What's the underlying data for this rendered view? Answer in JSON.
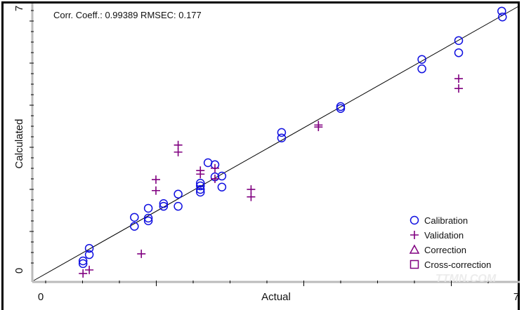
{
  "chart_data": {
    "type": "scatter",
    "title": "",
    "annotation": "Corr. Coeff.: 0.99389   RMSEC: 0.177",
    "xlabel": "Actual",
    "ylabel": "Calculated",
    "xlim": [
      0,
      7
    ],
    "ylim": [
      0,
      7
    ],
    "x_tick_labels": [
      "0",
      "7"
    ],
    "y_tick_labels": [
      "0",
      "7"
    ],
    "reference_line": "y = x",
    "grid": false,
    "legend_position": "bottom-right",
    "legend": [
      {
        "name": "Calibration",
        "marker": "circle",
        "color": "#1010e0"
      },
      {
        "name": "Validation",
        "marker": "plus",
        "color": "#800080"
      },
      {
        "name": "Correction",
        "marker": "triangle",
        "color": "#800080"
      },
      {
        "name": "Cross-correction",
        "marker": "square",
        "color": "#800080"
      }
    ],
    "series": [
      {
        "name": "Calibration",
        "marker": "circle",
        "color": "#1010e0",
        "points": [
          [
            0.71,
            0.5
          ],
          [
            0.71,
            0.43
          ],
          [
            0.8,
            0.82
          ],
          [
            0.8,
            0.66
          ],
          [
            1.45,
            1.61
          ],
          [
            1.45,
            1.38
          ],
          [
            1.65,
            1.84
          ],
          [
            1.65,
            1.59
          ],
          [
            1.65,
            1.52
          ],
          [
            1.87,
            1.96
          ],
          [
            1.87,
            1.89
          ],
          [
            2.08,
            2.2
          ],
          [
            2.08,
            1.89
          ],
          [
            2.4,
            2.48
          ],
          [
            2.4,
            2.41
          ],
          [
            2.4,
            2.32
          ],
          [
            2.4,
            2.25
          ],
          [
            2.51,
            3.0
          ],
          [
            2.61,
            2.95
          ],
          [
            2.61,
            2.64
          ],
          [
            2.71,
            2.66
          ],
          [
            2.71,
            2.38
          ],
          [
            3.57,
            3.77
          ],
          [
            3.57,
            3.63
          ],
          [
            4.42,
            4.43
          ],
          [
            4.42,
            4.38
          ],
          [
            5.59,
            5.63
          ],
          [
            5.59,
            5.39
          ],
          [
            6.12,
            6.11
          ],
          [
            6.12,
            5.8
          ],
          [
            6.74,
            6.86
          ],
          [
            6.75,
            6.71
          ]
        ]
      },
      {
        "name": "Validation",
        "marker": "plus",
        "color": "#800080",
        "points": [
          [
            0.71,
            0.18
          ],
          [
            0.8,
            0.27
          ],
          [
            1.55,
            0.68
          ],
          [
            1.76,
            2.57
          ],
          [
            1.76,
            2.29
          ],
          [
            2.08,
            3.45
          ],
          [
            2.08,
            3.27
          ],
          [
            2.4,
            2.8
          ],
          [
            2.4,
            2.71
          ],
          [
            2.61,
            2.86
          ],
          [
            2.61,
            2.59
          ],
          [
            3.13,
            2.32
          ],
          [
            3.13,
            2.13
          ],
          [
            4.1,
            3.96
          ],
          [
            4.1,
            3.91
          ],
          [
            6.12,
            5.14
          ],
          [
            6.12,
            4.89
          ]
        ]
      }
    ]
  },
  "watermark": "TTMN.COM 中国纺机网"
}
